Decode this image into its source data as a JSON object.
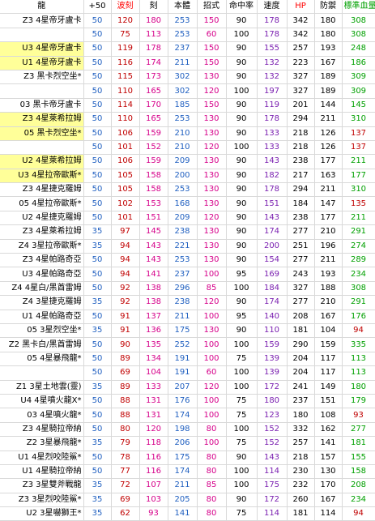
{
  "colors": {
    "plus50": "#1f5fc0",
    "red": "#c00000",
    "magenta": "#d6008a",
    "blue": "#1f5fc0",
    "black": "#000000",
    "purple": "#7a1fb0",
    "green": "#00a000",
    "highlight": "#ffff99"
  },
  "headers": [
    "龍",
    "+50",
    "波刻",
    "刻",
    "本體",
    "招式",
    "命中率",
    "速度",
    "HP",
    "防禦",
    "標準血量"
  ],
  "header_colors": [
    "k",
    "k",
    "r",
    "k",
    "k",
    "k",
    "k",
    "k",
    "r",
    "k",
    "g"
  ],
  "value_colors": [
    "p50",
    "r",
    "m",
    "b",
    "m",
    "k",
    "h",
    "k",
    "k",
    "g"
  ],
  "rows": [
    {
      "name": "Z3 4星帝牙盧卡",
      "hl": false,
      "div": false,
      "v": [
        "50",
        "120",
        "180",
        "253",
        "150",
        "90",
        "178",
        "342",
        "180",
        "308"
      ],
      "std_color": "g"
    },
    {
      "name": "",
      "hl": false,
      "div": false,
      "v": [
        "50",
        "75",
        "113",
        "253",
        "60",
        "100",
        "178",
        "342",
        "180",
        "308"
      ],
      "std_color": "g"
    },
    {
      "name": "U3 4星帝牙盧卡",
      "hl": true,
      "div": false,
      "v": [
        "50",
        "119",
        "178",
        "237",
        "150",
        "90",
        "155",
        "257",
        "193",
        "248"
      ],
      "std_color": "g"
    },
    {
      "name": "U1 4星帝牙盧卡",
      "hl": true,
      "div": true,
      "v": [
        "50",
        "116",
        "174",
        "211",
        "150",
        "90",
        "132",
        "223",
        "167",
        "186"
      ],
      "std_color": "g"
    },
    {
      "name": "Z3 黑卡烈空坐*",
      "hl": false,
      "div": true,
      "v": [
        "50",
        "115",
        "173",
        "302",
        "130",
        "90",
        "132",
        "327",
        "189",
        "309"
      ],
      "std_color": "g"
    },
    {
      "name": "",
      "hl": false,
      "div": false,
      "v": [
        "50",
        "110",
        "165",
        "302",
        "120",
        "100",
        "197",
        "327",
        "189",
        "309"
      ],
      "std_color": "g"
    },
    {
      "name": "03 黑卡帝牙盧卡",
      "hl": false,
      "div": false,
      "v": [
        "50",
        "114",
        "170",
        "185",
        "150",
        "90",
        "119",
        "201",
        "144",
        "145"
      ],
      "std_color": "g"
    },
    {
      "name": "Z3 4星萊希拉姆",
      "hl": true,
      "div": false,
      "v": [
        "50",
        "110",
        "165",
        "253",
        "130",
        "90",
        "178",
        "294",
        "211",
        "310"
      ],
      "std_color": "g"
    },
    {
      "name": "05 黑卡烈空坐*",
      "hl": true,
      "div": false,
      "v": [
        "50",
        "106",
        "159",
        "210",
        "130",
        "90",
        "133",
        "218",
        "126",
        "137"
      ],
      "std_color": "r"
    },
    {
      "name": "",
      "hl": false,
      "div": true,
      "v": [
        "50",
        "101",
        "152",
        "210",
        "120",
        "100",
        "133",
        "218",
        "126",
        "137"
      ],
      "std_color": "r"
    },
    {
      "name": "U2 4星萊希拉姆",
      "hl": true,
      "div": true,
      "v": [
        "50",
        "106",
        "159",
        "209",
        "130",
        "90",
        "143",
        "238",
        "177",
        "211"
      ],
      "std_color": "g"
    },
    {
      "name": "U3 4星拉帝歐斯*",
      "hl": true,
      "div": true,
      "v": [
        "50",
        "105",
        "158",
        "200",
        "130",
        "90",
        "182",
        "217",
        "163",
        "177"
      ],
      "std_color": "g"
    },
    {
      "name": "Z3 4星捷克羅姆",
      "hl": false,
      "div": true,
      "v": [
        "50",
        "105",
        "158",
        "253",
        "130",
        "90",
        "178",
        "294",
        "211",
        "310"
      ],
      "std_color": "g"
    },
    {
      "name": "05 4星拉帝歐斯*",
      "hl": false,
      "div": false,
      "v": [
        "50",
        "102",
        "153",
        "168",
        "130",
        "90",
        "151",
        "184",
        "147",
        "135"
      ],
      "std_color": "r"
    },
    {
      "name": "U2 4星捷克羅姆",
      "hl": false,
      "div": false,
      "v": [
        "50",
        "101",
        "151",
        "209",
        "120",
        "90",
        "143",
        "238",
        "177",
        "211"
      ],
      "std_color": "g"
    },
    {
      "name": "Z3 4星萊希拉姆",
      "hl": false,
      "div": false,
      "v": [
        "35",
        "97",
        "145",
        "238",
        "130",
        "90",
        "174",
        "277",
        "210",
        "291"
      ],
      "std_color": "g"
    },
    {
      "name": "Z4 3星拉帝歐斯*",
      "hl": false,
      "div": false,
      "v": [
        "35",
        "94",
        "143",
        "221",
        "130",
        "90",
        "200",
        "251",
        "196",
        "274"
      ],
      "std_color": "g"
    },
    {
      "name": "Z3 4星帕路奇亞",
      "hl": false,
      "div": false,
      "v": [
        "50",
        "94",
        "143",
        "253",
        "130",
        "90",
        "154",
        "277",
        "211",
        "289"
      ],
      "std_color": "g"
    },
    {
      "name": "U3 4星帕路奇亞",
      "hl": false,
      "div": false,
      "v": [
        "50",
        "94",
        "141",
        "237",
        "100",
        "95",
        "169",
        "243",
        "193",
        "234"
      ],
      "std_color": "g"
    },
    {
      "name": "Z4 4星白/黑酋雷姆",
      "hl": false,
      "div": false,
      "v": [
        "50",
        "92",
        "138",
        "296",
        "85",
        "100",
        "184",
        "327",
        "188",
        "308"
      ],
      "std_color": "g"
    },
    {
      "name": "Z4 3星捷克羅姆",
      "hl": false,
      "div": false,
      "v": [
        "35",
        "92",
        "138",
        "238",
        "120",
        "90",
        "174",
        "277",
        "210",
        "291"
      ],
      "std_color": "g"
    },
    {
      "name": "U1 4星帕路奇亞",
      "hl": false,
      "div": false,
      "v": [
        "50",
        "91",
        "137",
        "211",
        "100",
        "95",
        "140",
        "208",
        "167",
        "176"
      ],
      "std_color": "g"
    },
    {
      "name": "05 3星烈空坐*",
      "hl": false,
      "div": false,
      "v": [
        "35",
        "91",
        "136",
        "175",
        "130",
        "90",
        "110",
        "181",
        "104",
        "94"
      ],
      "std_color": "r"
    },
    {
      "name": "Z2 黑卡白/黑酋雷姆",
      "hl": false,
      "div": false,
      "v": [
        "50",
        "90",
        "135",
        "252",
        "100",
        "100",
        "159",
        "290",
        "159",
        "335"
      ],
      "std_color": "g"
    },
    {
      "name": "05 4星暴飛龍*",
      "hl": false,
      "div": false,
      "v": [
        "50",
        "89",
        "134",
        "191",
        "100",
        "75",
        "139",
        "204",
        "117",
        "113"
      ],
      "std_color": "g"
    },
    {
      "name": "",
      "hl": false,
      "div": false,
      "v": [
        "50",
        "69",
        "104",
        "191",
        "60",
        "100",
        "139",
        "204",
        "117",
        "113"
      ],
      "std_color": "g"
    },
    {
      "name": "Z1 3星土地雲(靈)",
      "hl": false,
      "div": true,
      "v": [
        "35",
        "89",
        "133",
        "207",
        "120",
        "100",
        "172",
        "241",
        "149",
        "180"
      ],
      "std_color": "g"
    },
    {
      "name": "U4 4星噴火龍X*",
      "hl": false,
      "div": false,
      "v": [
        "50",
        "88",
        "131",
        "176",
        "100",
        "75",
        "180",
        "237",
        "151",
        "179"
      ],
      "std_color": "g"
    },
    {
      "name": "03 4星噴火龍*",
      "hl": false,
      "div": false,
      "v": [
        "50",
        "88",
        "131",
        "174",
        "100",
        "75",
        "123",
        "180",
        "108",
        "93"
      ],
      "std_color": "r"
    },
    {
      "name": "Z3 4星騎拉帝納",
      "hl": false,
      "div": false,
      "v": [
        "50",
        "80",
        "120",
        "198",
        "80",
        "100",
        "152",
        "332",
        "162",
        "277"
      ],
      "std_color": "g"
    },
    {
      "name": "Z2 3星暴飛龍*",
      "hl": false,
      "div": false,
      "v": [
        "35",
        "79",
        "118",
        "206",
        "100",
        "75",
        "152",
        "257",
        "141",
        "181"
      ],
      "std_color": "g"
    },
    {
      "name": "U1 4星烈咬陸鯊*",
      "hl": false,
      "div": false,
      "v": [
        "50",
        "78",
        "116",
        "175",
        "80",
        "90",
        "143",
        "218",
        "157",
        "155"
      ],
      "std_color": "g"
    },
    {
      "name": "U1 4星騎拉帝納",
      "hl": false,
      "div": false,
      "v": [
        "50",
        "77",
        "116",
        "174",
        "80",
        "100",
        "114",
        "230",
        "130",
        "158"
      ],
      "std_color": "g"
    },
    {
      "name": "Z3 3星雙斧戰龍",
      "hl": false,
      "div": false,
      "v": [
        "35",
        "72",
        "107",
        "211",
        "85",
        "100",
        "175",
        "232",
        "170",
        "208"
      ],
      "std_color": "g"
    },
    {
      "name": "Z3 3星烈咬陸鯊*",
      "hl": false,
      "div": false,
      "v": [
        "35",
        "69",
        "103",
        "205",
        "80",
        "90",
        "172",
        "260",
        "167",
        "234"
      ],
      "std_color": "g"
    },
    {
      "name": "U2 3星嚇獅王*",
      "hl": false,
      "div": false,
      "v": [
        "35",
        "62",
        "93",
        "141",
        "80",
        "75",
        "114",
        "181",
        "114",
        "94"
      ],
      "std_color": "r"
    }
  ]
}
